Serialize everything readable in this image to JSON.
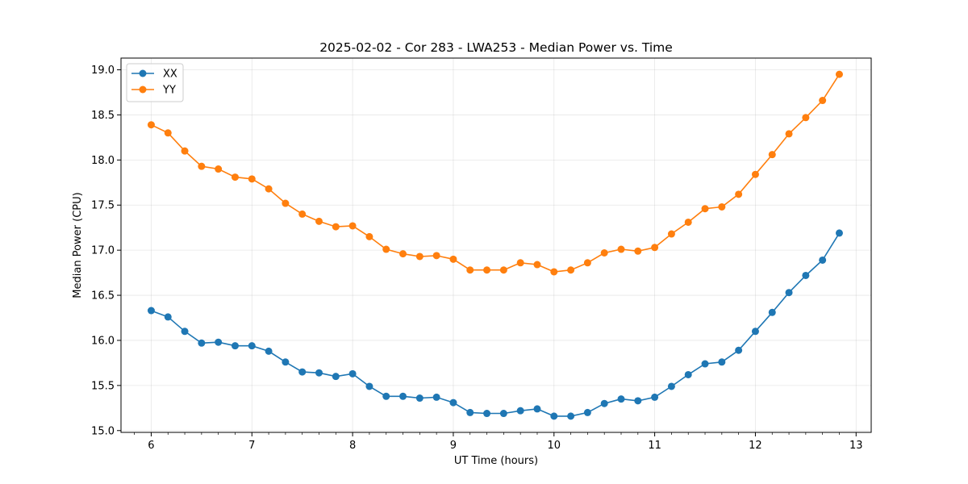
{
  "chart_data": {
    "type": "line",
    "title": "2025-02-02 - Cor 283 - LWA253 - Median Power vs. Time",
    "xlabel": "UT Time (hours)",
    "ylabel": "Median Power (CPU)",
    "xlim": [
      5.7,
      13.15
    ],
    "ylim": [
      14.98,
      19.13
    ],
    "xticks": [
      6,
      7,
      8,
      9,
      10,
      11,
      12,
      13
    ],
    "xtick_labels": [
      "6",
      "7",
      "8",
      "9",
      "10",
      "11",
      "12",
      "13"
    ],
    "yticks": [
      15.0,
      15.5,
      16.0,
      16.5,
      17.0,
      17.5,
      18.0,
      18.5,
      19.0
    ],
    "ytick_labels": [
      "15.0",
      "15.5",
      "16.0",
      "16.5",
      "17.0",
      "17.5",
      "18.0",
      "18.5",
      "19.0"
    ],
    "grid": true,
    "legend_position": "top-left",
    "x": [
      6.0,
      6.1667,
      6.3333,
      6.5,
      6.6667,
      6.8333,
      7.0,
      7.1667,
      7.3333,
      7.5,
      7.6667,
      7.8333,
      8.0,
      8.1667,
      8.3333,
      8.5,
      8.6667,
      8.8333,
      9.0,
      9.1667,
      9.3333,
      9.5,
      9.6667,
      9.8333,
      10.0,
      10.1667,
      10.3333,
      10.5,
      10.6667,
      10.8333,
      11.0,
      11.1667,
      11.3333,
      11.5,
      11.6667,
      11.8333,
      12.0,
      12.1667,
      12.3333,
      12.5,
      12.6667,
      12.8333
    ],
    "series": [
      {
        "name": "XX",
        "color": "#1f77b4",
        "values": [
          16.33,
          16.26,
          16.1,
          15.97,
          15.98,
          15.94,
          15.94,
          15.88,
          15.76,
          15.65,
          15.64,
          15.6,
          15.63,
          15.49,
          15.38,
          15.38,
          15.36,
          15.37,
          15.31,
          15.2,
          15.19,
          15.19,
          15.22,
          15.24,
          15.16,
          15.16,
          15.2,
          15.3,
          15.35,
          15.33,
          15.37,
          15.49,
          15.62,
          15.74,
          15.76,
          15.89,
          16.1,
          16.31,
          16.53,
          16.72,
          16.89,
          17.19
        ]
      },
      {
        "name": "YY",
        "color": "#ff7f0e",
        "values": [
          18.39,
          18.3,
          18.1,
          17.93,
          17.9,
          17.81,
          17.79,
          17.68,
          17.52,
          17.4,
          17.32,
          17.26,
          17.27,
          17.15,
          17.01,
          16.96,
          16.93,
          16.94,
          16.9,
          16.78,
          16.78,
          16.78,
          16.86,
          16.84,
          16.76,
          16.78,
          16.86,
          16.97,
          17.01,
          16.99,
          17.03,
          17.18,
          17.31,
          17.46,
          17.48,
          17.62,
          17.84,
          18.06,
          18.29,
          18.47,
          18.66,
          18.95
        ]
      }
    ]
  }
}
